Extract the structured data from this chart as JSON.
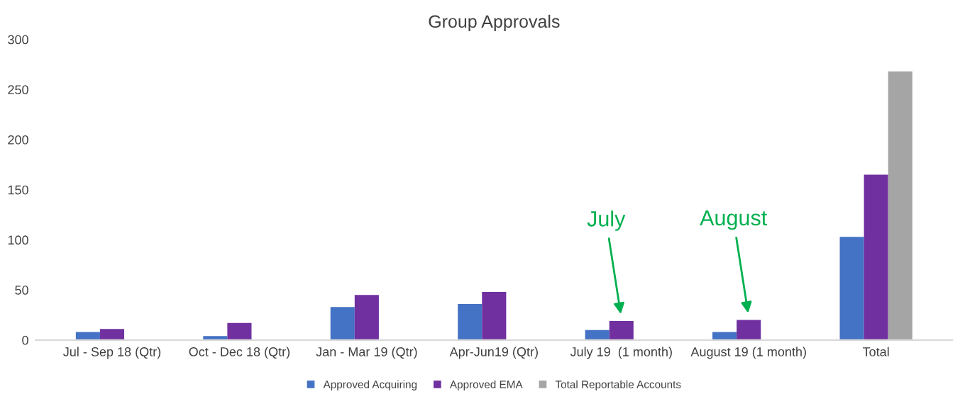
{
  "chart_data": {
    "type": "bar",
    "title": "Group Approvals",
    "categories": [
      "Jul - Sep 18 (Qtr)",
      "Oct - Dec 18 (Qtr)",
      "Jan - Mar 19 (Qtr)",
      "Apr-Jun19 (Qtr)",
      "July 19  (1 month)",
      "August 19 (1 month)",
      "Total"
    ],
    "series": [
      {
        "name": "Approved Acquiring",
        "color": "#4472c4",
        "values": [
          8,
          4,
          33,
          36,
          10,
          8,
          103
        ]
      },
      {
        "name": "Approved EMA",
        "color": "#7030a0",
        "values": [
          11,
          17,
          45,
          48,
          19,
          20,
          165
        ]
      },
      {
        "name": "Total Reportable Accounts",
        "color": "#a5a5a5",
        "values": [
          null,
          null,
          null,
          null,
          null,
          null,
          268
        ]
      }
    ],
    "ylim": [
      0,
      300
    ],
    "yticks": [
      0,
      50,
      100,
      150,
      200,
      250,
      300
    ],
    "grid": false,
    "legend": "bottom",
    "annotations": [
      {
        "text": "July",
        "x": "July 19  (1 month)",
        "y": 19
      },
      {
        "text": "August",
        "x": "August 19 (1 month)",
        "y": 20
      }
    ]
  }
}
